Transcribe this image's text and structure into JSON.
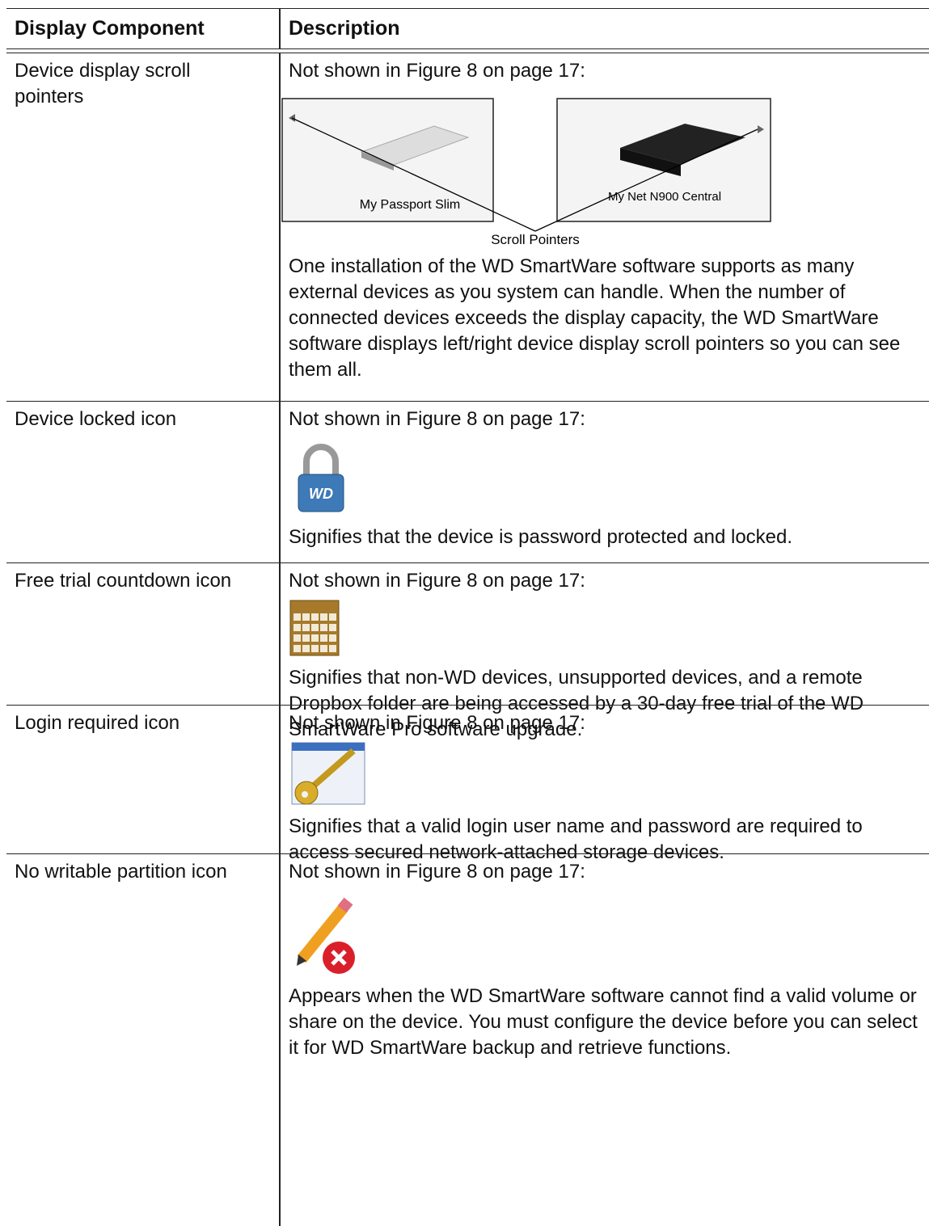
{
  "table": {
    "headers": [
      "Display Component",
      "Description"
    ],
    "rows": [
      {
        "component": "Device display scroll pointers",
        "note": "Not shown in Figure 8 on page 17:",
        "figure_labels": [
          "My Passport Slim",
          "My Net N900 Central"
        ],
        "caption": "Scroll Pointers",
        "description": "One installation of the WD SmartWare software supports as many external devices as you system can handle. When the number of connected devices exceeds the display capacity, the WD SmartWare software displays left/right device display scroll pointers so you can see them all."
      },
      {
        "component": "Device locked icon",
        "note": "Not shown in Figure 8 on page 17:",
        "icon_text": "WD",
        "description": "Signifies that the device is password protected and locked."
      },
      {
        "component": "Free trial countdown icon",
        "note": "Not shown in Figure 8 on page 17:",
        "description": "Signifies that non-WD devices, unsupported devices, and a remote Dropbox folder are being accessed by a 30-day free trial of the WD SmartWare Pro software upgrade."
      },
      {
        "component": "Login required icon",
        "note": "Not shown in Figure 8 on page 17:",
        "description": "Signifies that a valid login user name and password are required to access secured network-attached storage devices."
      },
      {
        "component": "No writable partition icon",
        "note": "Not shown in Figure 8 on page 17:",
        "description": "Appears when the WD SmartWare software cannot find a valid volume or share on the device. You must configure the device before you can select it for WD SmartWare backup and retrieve functions."
      }
    ]
  }
}
